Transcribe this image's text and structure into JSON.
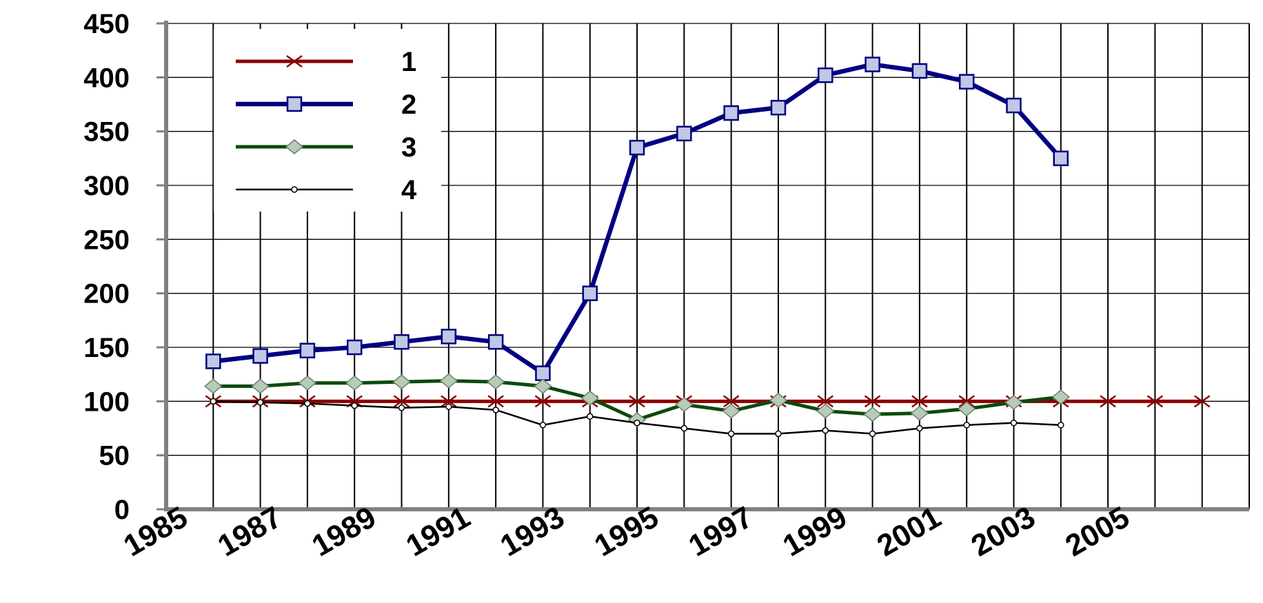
{
  "chart_data": {
    "type": "line",
    "title": "",
    "xlabel": "",
    "ylabel": "",
    "x": [
      1986,
      1987,
      1988,
      1989,
      1990,
      1991,
      1992,
      1993,
      1994,
      1995,
      1996,
      1997,
      1998,
      1999,
      2000,
      2001,
      2002,
      2003,
      2004,
      2005,
      2006,
      2007
    ],
    "xlim": [
      1985,
      2008
    ],
    "ylim": [
      0,
      450
    ],
    "yticks": [
      0,
      50,
      100,
      150,
      200,
      250,
      300,
      350,
      400,
      450
    ],
    "xtick_labels": [
      "1985",
      "1987",
      "1989",
      "1991",
      "1993",
      "1995",
      "1997",
      "1999",
      "2001",
      "2003",
      "2005"
    ],
    "grid": true,
    "legend_position": "top-left",
    "series": [
      {
        "name": "1",
        "color": "#8b0000",
        "marker": "x",
        "values": [
          100,
          100,
          100,
          100,
          100,
          100,
          100,
          100,
          100,
          100,
          100,
          100,
          100,
          100,
          100,
          100,
          100,
          100,
          100,
          100,
          100,
          100
        ]
      },
      {
        "name": "2",
        "color": "#000080",
        "marker": "square",
        "values": [
          137,
          142,
          147,
          150,
          155,
          160,
          155,
          126,
          200,
          335,
          348,
          367,
          372,
          402,
          412,
          406,
          396,
          374,
          325,
          null,
          null,
          null
        ]
      },
      {
        "name": "3",
        "color": "#0b4a0b",
        "marker": "diamond",
        "values": [
          114,
          114,
          117,
          117,
          118,
          119,
          118,
          114,
          103,
          83,
          97,
          91,
          101,
          91,
          88,
          89,
          93,
          99,
          104,
          null,
          null,
          null
        ]
      },
      {
        "name": "4",
        "color": "#000000",
        "marker": "dot",
        "values": [
          100,
          99,
          98,
          96,
          94,
          95,
          92,
          78,
          86,
          80,
          75,
          70,
          70,
          73,
          70,
          75,
          78,
          80,
          78,
          null,
          null,
          null
        ]
      }
    ]
  }
}
